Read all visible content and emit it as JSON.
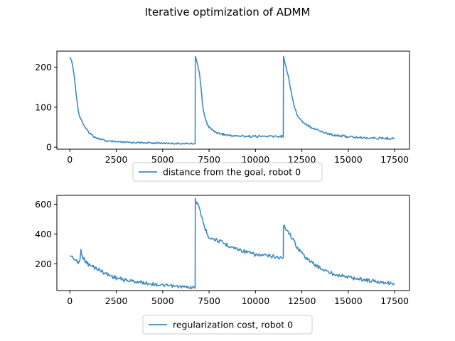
{
  "figure": {
    "title": "Iterative optimization of ADMM",
    "line_color": "#3f8bbf"
  },
  "chart_data": [
    {
      "type": "line",
      "title": "Iterative optimization of ADMM",
      "xlabel": "",
      "ylabel": "",
      "xlim": [
        -700,
        18300
      ],
      "ylim": [
        -5,
        240
      ],
      "xticks": [
        0,
        2500,
        5000,
        7500,
        10000,
        12500,
        15000,
        17500
      ],
      "xtick_labels": [
        "0",
        "2500",
        "5000",
        "7500",
        "10000",
        "12500",
        "15000",
        "17500"
      ],
      "yticks": [
        0,
        100,
        200
      ],
      "ytick_labels": [
        "0",
        "100",
        "200"
      ],
      "legend": "bottom-center",
      "series": [
        {
          "name": "distance from the goal, robot 0",
          "x": [
            0,
            100,
            200,
            300,
            400,
            500,
            600,
            700,
            800,
            1000,
            1200,
            1500,
            2000,
            2500,
            3000,
            4000,
            5000,
            6000,
            6750,
            6760,
            6850,
            7000,
            7100,
            7200,
            7300,
            7400,
            7500,
            7700,
            8000,
            8500,
            9000,
            10000,
            11000,
            11500,
            11510,
            11600,
            11800,
            12000,
            12200,
            12500,
            13000,
            13500,
            14000,
            15000,
            16000,
            17000,
            17500
          ],
          "y": [
            225,
            215,
            190,
            150,
            110,
            80,
            70,
            60,
            50,
            38,
            30,
            22,
            15,
            13,
            12,
            11,
            10,
            9,
            9,
            225,
            215,
            180,
            130,
            90,
            70,
            58,
            50,
            42,
            35,
            30,
            28,
            27,
            27,
            27,
            225,
            210,
            170,
            120,
            85,
            65,
            50,
            40,
            32,
            26,
            23,
            22,
            22
          ]
        }
      ]
    },
    {
      "type": "line",
      "title": "",
      "xlabel": "",
      "ylabel": "",
      "xlim": [
        -700,
        18300
      ],
      "ylim": [
        20,
        660
      ],
      "xticks": [
        0,
        2500,
        5000,
        7500,
        10000,
        12500,
        15000,
        17500
      ],
      "xtick_labels": [
        "0",
        "2500",
        "5000",
        "7500",
        "10000",
        "12500",
        "15000",
        "17500"
      ],
      "yticks": [
        200,
        400,
        600
      ],
      "ytick_labels": [
        "200",
        "400",
        "600"
      ],
      "legend": "bottom-center",
      "series": [
        {
          "name": "regularization cost, robot 0",
          "x": [
            0,
            150,
            300,
            450,
            550,
            600,
            700,
            800,
            1000,
            1500,
            2000,
            2500,
            3000,
            4000,
            5000,
            6000,
            6750,
            6760,
            6900,
            7100,
            7300,
            7500,
            8000,
            8500,
            9000,
            9500,
            10000,
            11000,
            11500,
            11510,
            11600,
            11800,
            12000,
            12200,
            12500,
            13000,
            13500,
            14000,
            15000,
            16000,
            17000,
            17500
          ],
          "y": [
            255,
            245,
            225,
            205,
            230,
            290,
            245,
            225,
            195,
            165,
            130,
            105,
            90,
            72,
            55,
            45,
            40,
            630,
            600,
            520,
            430,
            380,
            355,
            325,
            300,
            280,
            260,
            250,
            235,
            460,
            445,
            410,
            370,
            320,
            270,
            210,
            170,
            140,
            110,
            90,
            75,
            65
          ]
        }
      ]
    }
  ]
}
